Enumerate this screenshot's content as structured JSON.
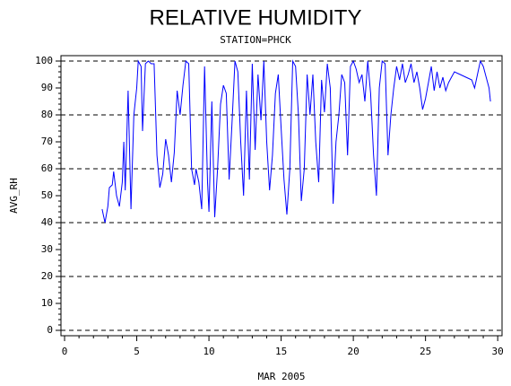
{
  "chart_data": {
    "type": "line",
    "title": "RELATIVE HUMIDITY",
    "subtitle": "STATION=PHCK",
    "xlabel": "MAR 2005",
    "ylabel": "AVG_RH",
    "xlim": [
      -0.25,
      30.3
    ],
    "ylim": [
      -2,
      102
    ],
    "xticks": [
      0,
      5,
      10,
      15,
      20,
      25,
      30
    ],
    "yticks": [
      0,
      10,
      20,
      30,
      40,
      50,
      60,
      70,
      80,
      90,
      100
    ],
    "grid_lines": [
      0,
      20,
      40,
      60,
      80,
      100
    ],
    "minor_ticks": true,
    "series": [
      {
        "name": "AVG_RH",
        "color": "#0000ff",
        "x": [
          2.6,
          2.8,
          3.0,
          3.1,
          3.3,
          3.4,
          3.6,
          3.8,
          4.0,
          4.1,
          4.2,
          4.4,
          4.6,
          4.8,
          5.0,
          5.1,
          5.3,
          5.4,
          5.6,
          5.8,
          6.0,
          6.2,
          6.4,
          6.6,
          6.8,
          7.0,
          7.2,
          7.4,
          7.6,
          7.8,
          8.0,
          8.2,
          8.4,
          8.6,
          8.8,
          9.0,
          9.1,
          9.3,
          9.5,
          9.7,
          9.9,
          10.0,
          10.2,
          10.4,
          10.6,
          10.8,
          11.0,
          11.2,
          11.4,
          11.6,
          11.8,
          12.0,
          12.2,
          12.4,
          12.6,
          12.8,
          13.0,
          13.2,
          13.4,
          13.6,
          13.8,
          14.0,
          14.2,
          14.4,
          14.6,
          14.8,
          15.0,
          15.2,
          15.4,
          15.6,
          15.8,
          16.0,
          16.2,
          16.4,
          16.6,
          16.8,
          17.0,
          17.2,
          17.4,
          17.6,
          17.8,
          18.0,
          18.2,
          18.4,
          18.6,
          18.8,
          19.0,
          19.2,
          19.4,
          19.6,
          19.8,
          20.0,
          20.2,
          20.4,
          20.6,
          20.8,
          21.0,
          21.2,
          21.4,
          21.6,
          21.8,
          22.0,
          22.2,
          22.4,
          22.6,
          22.8,
          23.0,
          23.2,
          23.4,
          23.6,
          23.8,
          24.0,
          24.2,
          24.4,
          24.6,
          24.8,
          25.0,
          25.2,
          25.4,
          25.6,
          25.8,
          26.0,
          26.2,
          26.4,
          26.6,
          26.8,
          27.0,
          27.4,
          27.8,
          28.2,
          28.4,
          28.6,
          28.8,
          29.0,
          29.2,
          29.4,
          29.5
        ],
        "values": [
          45,
          40,
          46,
          53,
          54,
          59,
          50,
          46,
          55,
          70,
          52,
          89,
          45,
          80,
          90,
          100,
          98,
          74,
          99,
          100,
          99,
          99,
          65,
          53,
          58,
          71,
          65,
          55,
          66,
          89,
          80,
          91,
          100,
          99,
          60,
          54,
          60,
          55,
          45,
          98,
          55,
          44,
          85,
          42,
          60,
          84,
          91,
          88,
          56,
          77,
          100,
          96,
          70,
          50,
          89,
          56,
          99,
          67,
          95,
          78,
          100,
          70,
          52,
          65,
          88,
          95,
          75,
          56,
          43,
          60,
          100,
          98,
          80,
          48,
          60,
          95,
          80,
          95,
          70,
          55,
          93,
          81,
          99,
          90,
          47,
          70,
          80,
          95,
          92,
          65,
          98,
          100,
          97,
          92,
          95,
          85,
          100,
          88,
          65,
          50,
          90,
          100,
          99,
          65,
          80,
          90,
          98,
          93,
          99,
          92,
          95,
          99,
          92,
          96,
          90,
          82,
          86,
          92,
          98,
          89,
          96,
          90,
          94,
          89,
          92,
          94,
          96,
          95,
          94,
          93,
          90,
          95,
          100,
          98,
          94,
          90,
          85
        ]
      }
    ]
  }
}
